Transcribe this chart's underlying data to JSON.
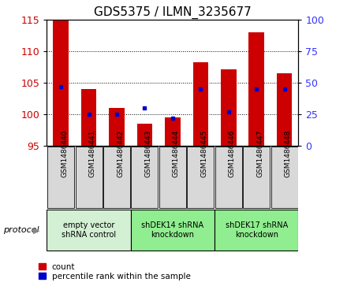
{
  "title": "GDS5375 / ILMN_3235677",
  "samples": [
    "GSM1486440",
    "GSM1486441",
    "GSM1486442",
    "GSM1486443",
    "GSM1486444",
    "GSM1486445",
    "GSM1486446",
    "GSM1486447",
    "GSM1486448"
  ],
  "counts": [
    115.0,
    104.0,
    101.0,
    98.5,
    99.5,
    108.3,
    107.1,
    113.0,
    106.5
  ],
  "percentiles": [
    47,
    25,
    25,
    30,
    22,
    45,
    27,
    45,
    45
  ],
  "y_min": 95,
  "y_max": 115,
  "y_ticks": [
    95,
    100,
    105,
    110,
    115
  ],
  "y2_ticks": [
    0,
    25,
    50,
    75,
    100
  ],
  "bar_color": "#cc0000",
  "marker_color": "#0000cc",
  "groups": [
    {
      "label": "empty vector\nshRNA control",
      "start": 0,
      "end": 3,
      "color": "#d4f0d4"
    },
    {
      "label": "shDEK14 shRNA\nknockdown",
      "start": 3,
      "end": 6,
      "color": "#90ee90"
    },
    {
      "label": "shDEK17 shRNA\nknockdown",
      "start": 6,
      "end": 9,
      "color": "#90ee90"
    }
  ],
  "legend_count_label": "count",
  "legend_percentile_label": "percentile rank within the sample",
  "protocol_label": "protocol",
  "background_color": "#ffffff",
  "plot_bg_color": "#ffffff",
  "sample_box_color": "#d8d8d8",
  "tick_label_color_left": "#cc0000",
  "tick_label_color_right": "#3333ff",
  "title_fontsize": 11,
  "tick_fontsize": 9,
  "bar_width": 0.55
}
